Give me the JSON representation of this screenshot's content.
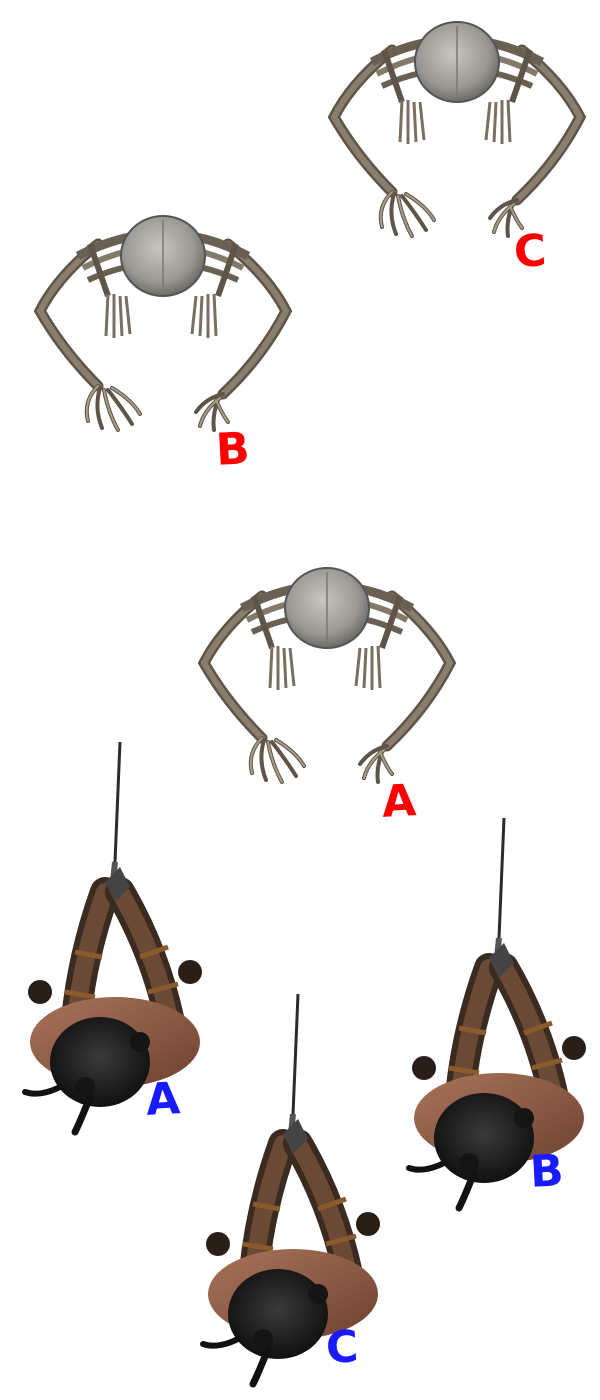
{
  "enemies": [
    {
      "id": "A",
      "label": "A",
      "color": "#ff0000"
    },
    {
      "id": "B",
      "label": "B",
      "color": "#ff0000"
    },
    {
      "id": "C",
      "label": "C",
      "color": "#ff0000"
    }
  ],
  "heroes": [
    {
      "id": "A",
      "label": "A",
      "color": "#1a1aff"
    },
    {
      "id": "B",
      "label": "B",
      "color": "#1a1aff"
    },
    {
      "id": "C",
      "label": "C",
      "color": "#1a1aff"
    }
  ],
  "sprites": {
    "enemy": "skeleton-spider-sprite",
    "hero": "sword-warrior-topdown-sprite"
  }
}
